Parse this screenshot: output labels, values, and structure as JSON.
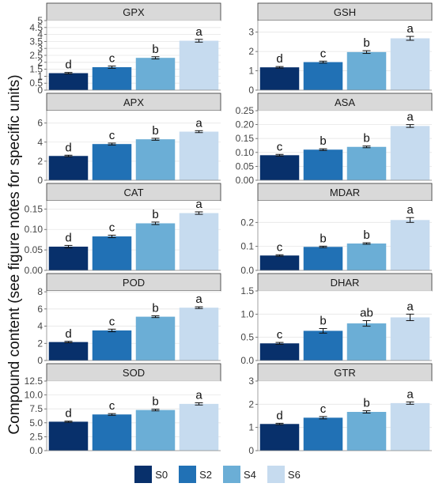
{
  "chart_data": {
    "type": "bar",
    "ylabel": "Compound content (see figure notes for specific units)",
    "series_names": [
      "S0",
      "S2",
      "S4",
      "S6"
    ],
    "colors": [
      "#08306b",
      "#2171b5",
      "#6baed6",
      "#c6dbef"
    ],
    "legend_position": "bottom",
    "grid": true,
    "panels": [
      {
        "title": "GPX",
        "ylim": [
          0,
          5
        ],
        "ticks": [
          "0",
          "0.5",
          "1",
          "1.5",
          "2",
          "2.5",
          "3",
          "3.5",
          "4",
          "4.5",
          "5"
        ],
        "values": [
          1.22,
          1.65,
          2.32,
          3.55
        ],
        "errors": [
          0.05,
          0.08,
          0.08,
          0.1
        ],
        "letters": [
          "d",
          "c",
          "b",
          "a"
        ]
      },
      {
        "title": "GSH",
        "ylim": [
          0,
          3.6
        ],
        "ticks": [
          "0",
          "1",
          "2",
          "3"
        ],
        "values": [
          1.18,
          1.45,
          1.97,
          2.68
        ],
        "errors": [
          0.04,
          0.05,
          0.07,
          0.1
        ],
        "letters": [
          "d",
          "c",
          "b",
          "a"
        ]
      },
      {
        "title": "APX",
        "ylim": [
          0,
          7.3
        ],
        "ticks": [
          "0",
          "2",
          "4",
          "6"
        ],
        "values": [
          2.55,
          3.8,
          4.3,
          5.1
        ],
        "errors": [
          0.08,
          0.1,
          0.1,
          0.1
        ],
        "letters": [
          "d",
          "c",
          "b",
          "a"
        ]
      },
      {
        "title": "ASA",
        "ylim": [
          0,
          0.25
        ],
        "ticks": [
          "0.00",
          "0.05",
          "0.10",
          "0.15",
          "0.20",
          "0.25"
        ],
        "values": [
          0.09,
          0.11,
          0.12,
          0.195
        ],
        "errors": [
          0.003,
          0.003,
          0.003,
          0.005
        ],
        "letters": [
          "c",
          "b",
          "b",
          "a"
        ]
      },
      {
        "title": "CAT",
        "ylim": [
          0,
          0.17
        ],
        "ticks": [
          "0.00",
          "0.05",
          "0.10",
          "0.15"
        ],
        "values": [
          0.058,
          0.083,
          0.115,
          0.14
        ],
        "errors": [
          0.003,
          0.003,
          0.003,
          0.003
        ],
        "letters": [
          "d",
          "c",
          "b",
          "a"
        ]
      },
      {
        "title": "MDAR",
        "ylim": [
          0,
          0.29
        ],
        "ticks": [
          "0.0",
          "0.1",
          "0.2"
        ],
        "values": [
          0.062,
          0.098,
          0.112,
          0.21
        ],
        "errors": [
          0.003,
          0.003,
          0.003,
          0.01
        ],
        "letters": [
          "c",
          "b",
          "b",
          "a"
        ]
      },
      {
        "title": "POD",
        "ylim": [
          0,
          8.1
        ],
        "ticks": [
          "0",
          "2",
          "4",
          "6",
          "8"
        ],
        "values": [
          2.15,
          3.5,
          5.1,
          6.15
        ],
        "errors": [
          0.08,
          0.15,
          0.1,
          0.1
        ],
        "letters": [
          "d",
          "c",
          "b",
          "a"
        ]
      },
      {
        "title": "DHAR",
        "ylim": [
          0,
          1.5
        ],
        "ticks": [
          "0.0",
          "0.5",
          "1.0",
          "1.5"
        ],
        "values": [
          0.37,
          0.64,
          0.8,
          0.93
        ],
        "errors": [
          0.02,
          0.05,
          0.06,
          0.07
        ],
        "letters": [
          "c",
          "b",
          "ab",
          "a"
        ]
      },
      {
        "title": "SOD",
        "ylim": [
          0,
          12.5
        ],
        "ticks": [
          "0.0",
          "2.5",
          "5.0",
          "7.5",
          "10.0",
          "12.5"
        ],
        "values": [
          5.2,
          6.5,
          7.3,
          8.4
        ],
        "errors": [
          0.1,
          0.15,
          0.15,
          0.2
        ],
        "letters": [
          "d",
          "c",
          "b",
          "a"
        ]
      },
      {
        "title": "GTR",
        "ylim": [
          0,
          3
        ],
        "ticks": [
          "0",
          "1",
          "2",
          "3"
        ],
        "values": [
          1.15,
          1.42,
          1.67,
          2.05
        ],
        "errors": [
          0.03,
          0.05,
          0.05,
          0.05
        ],
        "letters": [
          "d",
          "c",
          "b",
          "a"
        ]
      }
    ]
  },
  "legend": {
    "items": [
      {
        "label": "S0",
        "color": "#08306b"
      },
      {
        "label": "S2",
        "color": "#2171b5"
      },
      {
        "label": "S4",
        "color": "#6baed6"
      },
      {
        "label": "S6",
        "color": "#c6dbef"
      }
    ]
  }
}
